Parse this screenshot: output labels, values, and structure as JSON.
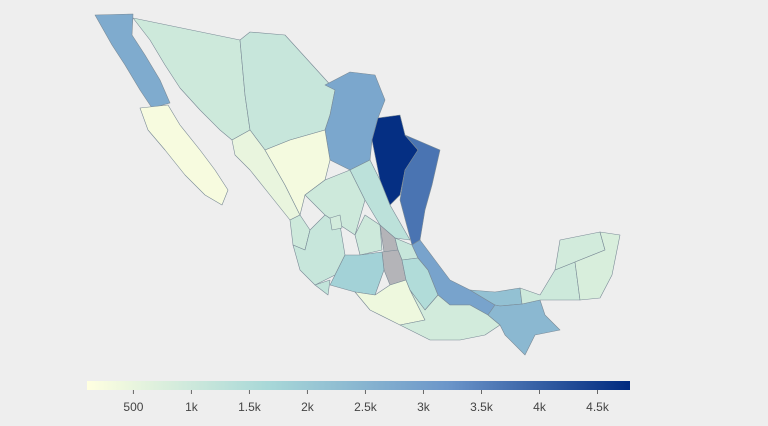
{
  "chart_data": {
    "type": "choropleth",
    "values": [
      2700,
      250,
      1000,
      1100,
      2800,
      4700,
      3700,
      500,
      300,
      1000,
      1300,
      1000,
      1100,
      900,
      1000,
      null,
      1100,
      null,
      1200,
      1800,
      400,
      1500,
      2900,
      900,
      2200,
      2400,
      1000,
      900,
      800
    ],
    "colorscale": [
      "#ffffe0",
      "#a8d8d8",
      "#6b95c9",
      "#00297f"
    ],
    "null_color": "#b4b4b8",
    "clim": [
      100,
      4780
    ],
    "cticks": [
      500,
      {
        "value": 1000,
        "label": "1k"
      },
      {
        "value": 1500,
        "label": "1.5k"
      },
      {
        "value": 2000,
        "label": "2k"
      },
      {
        "value": 2500,
        "label": "2.5k"
      },
      {
        "value": 3000,
        "label": "3k"
      },
      {
        "value": 3500,
        "label": "3.5k"
      },
      {
        "value": 4000,
        "label": "4k"
      },
      {
        "value": 4500,
        "label": "4.5k"
      }
    ]
  }
}
